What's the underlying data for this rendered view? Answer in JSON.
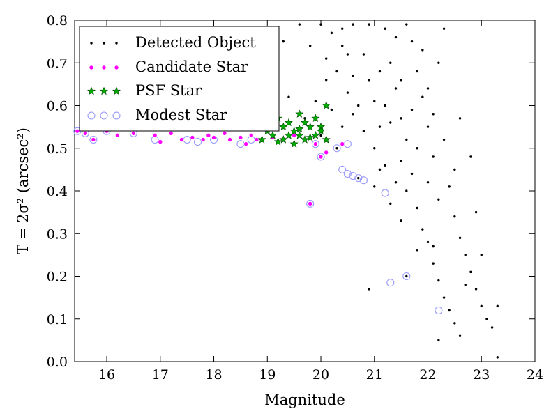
{
  "chart_data": {
    "type": "scatter",
    "xlabel": "Magnitude",
    "ylabel": "T = 2σ² (arcsec²)",
    "xlim": [
      15.4,
      24
    ],
    "ylim": [
      0.0,
      0.8
    ],
    "xticks": [
      16,
      17,
      18,
      19,
      20,
      21,
      22,
      23,
      24
    ],
    "yticks": [
      0.0,
      0.1,
      0.2,
      0.3,
      0.4,
      0.5,
      0.6,
      0.7,
      0.8
    ],
    "xtick_labels": [
      "16",
      "17",
      "18",
      "19",
      "20",
      "21",
      "22",
      "23",
      "24"
    ],
    "ytick_labels": [
      "0.0",
      "0.1",
      "0.2",
      "0.3",
      "0.4",
      "0.5",
      "0.6",
      "0.7",
      "0.8"
    ],
    "grid": false,
    "legend_position": "top-left",
    "colors": {
      "detected": "#000000",
      "candidate": "#ff00ff",
      "psf": "#00aa00",
      "modest": "#9999ff"
    },
    "series": [
      {
        "name": "Detected Object",
        "marker": "dot",
        "points": [
          [
            20.0,
            0.79
          ],
          [
            20.2,
            0.77
          ],
          [
            20.4,
            0.74
          ],
          [
            20.3,
            0.68
          ],
          [
            20.5,
            0.63
          ],
          [
            20.6,
            0.58
          ],
          [
            20.8,
            0.72
          ],
          [
            20.9,
            0.66
          ],
          [
            21.0,
            0.61
          ],
          [
            21.1,
            0.55
          ],
          [
            21.2,
            0.78
          ],
          [
            21.3,
            0.7
          ],
          [
            21.4,
            0.64
          ],
          [
            21.5,
            0.57
          ],
          [
            21.6,
            0.52
          ],
          [
            21.7,
            0.75
          ],
          [
            21.8,
            0.68
          ],
          [
            21.9,
            0.62
          ],
          [
            22.0,
            0.55
          ],
          [
            22.1,
            0.48
          ],
          [
            21.2,
            0.46
          ],
          [
            21.4,
            0.42
          ],
          [
            21.6,
            0.4
          ],
          [
            21.8,
            0.36
          ],
          [
            21.9,
            0.31
          ],
          [
            22.0,
            0.28
          ],
          [
            22.1,
            0.23
          ],
          [
            22.2,
            0.19
          ],
          [
            22.3,
            0.15
          ],
          [
            22.4,
            0.12
          ],
          [
            22.5,
            0.34
          ],
          [
            22.6,
            0.29
          ],
          [
            22.7,
            0.25
          ],
          [
            22.8,
            0.21
          ],
          [
            22.9,
            0.17
          ],
          [
            23.0,
            0.13
          ],
          [
            23.1,
            0.1
          ],
          [
            23.2,
            0.08
          ],
          [
            23.3,
            0.01
          ],
          [
            22.6,
            0.06
          ],
          [
            22.2,
            0.05
          ],
          [
            22.4,
            0.41
          ],
          [
            22.5,
            0.45
          ],
          [
            22.3,
            0.52
          ],
          [
            22.1,
            0.58
          ],
          [
            22.0,
            0.64
          ],
          [
            22.2,
            0.7
          ],
          [
            22.3,
            0.78
          ],
          [
            21.6,
            0.79
          ],
          [
            21.9,
            0.73
          ],
          [
            20.6,
            0.79
          ],
          [
            20.8,
            0.54
          ],
          [
            21.0,
            0.5
          ],
          [
            21.2,
            0.6
          ],
          [
            21.5,
            0.47
          ],
          [
            21.7,
            0.44
          ],
          [
            21.8,
            0.5
          ],
          [
            21.3,
            0.56
          ],
          [
            20.7,
            0.6
          ],
          [
            20.4,
            0.55
          ],
          [
            20.2,
            0.59
          ],
          [
            20.3,
            0.5
          ],
          [
            20.5,
            0.72
          ],
          [
            20.9,
            0.79
          ],
          [
            21.1,
            0.68
          ],
          [
            21.4,
            0.76
          ],
          [
            21.7,
            0.59
          ],
          [
            22.0,
            0.42
          ],
          [
            22.2,
            0.38
          ],
          [
            22.6,
            0.57
          ],
          [
            22.8,
            0.48
          ],
          [
            23.0,
            0.25
          ],
          [
            23.3,
            0.13
          ],
          [
            22.9,
            0.35
          ],
          [
            22.7,
            0.18
          ],
          [
            22.5,
            0.09
          ],
          [
            21.6,
            0.2
          ],
          [
            21.8,
            0.26
          ],
          [
            21.5,
            0.33
          ],
          [
            21.3,
            0.37
          ],
          [
            20.9,
            0.17
          ],
          [
            21.0,
            0.41
          ],
          [
            21.1,
            0.45
          ],
          [
            20.7,
            0.43
          ],
          [
            20.1,
            0.66
          ],
          [
            19.8,
            0.74
          ],
          [
            19.6,
            0.79
          ],
          [
            18.9,
            0.78
          ],
          [
            19.0,
            0.7
          ],
          [
            19.3,
            0.75
          ],
          [
            19.2,
            0.65
          ],
          [
            19.4,
            0.62
          ],
          [
            19.7,
            0.57
          ],
          [
            20.0,
            0.53
          ],
          [
            19.9,
            0.61
          ],
          [
            20.1,
            0.71
          ],
          [
            20.4,
            0.78
          ],
          [
            20.6,
            0.67
          ],
          [
            21.5,
            0.66
          ],
          [
            22.1,
            0.27
          ]
        ]
      },
      {
        "name": "Candidate Star",
        "marker": "circle",
        "points": [
          [
            15.45,
            0.54
          ],
          [
            15.6,
            0.535
          ],
          [
            15.75,
            0.52
          ],
          [
            16.0,
            0.54
          ],
          [
            16.2,
            0.53
          ],
          [
            16.5,
            0.535
          ],
          [
            16.9,
            0.53
          ],
          [
            17.0,
            0.515
          ],
          [
            17.2,
            0.535
          ],
          [
            17.4,
            0.52
          ],
          [
            17.6,
            0.525
          ],
          [
            17.8,
            0.52
          ],
          [
            17.9,
            0.53
          ],
          [
            18.0,
            0.525
          ],
          [
            18.2,
            0.535
          ],
          [
            18.3,
            0.52
          ],
          [
            18.5,
            0.525
          ],
          [
            18.6,
            0.51
          ],
          [
            18.7,
            0.53
          ],
          [
            18.8,
            0.52
          ],
          [
            19.1,
            0.525
          ],
          [
            19.5,
            0.53
          ],
          [
            19.9,
            0.51
          ],
          [
            20.0,
            0.48
          ],
          [
            20.1,
            0.49
          ],
          [
            19.8,
            0.37
          ],
          [
            20.4,
            0.51
          ]
        ]
      },
      {
        "name": "PSF Star",
        "marker": "star",
        "points": [
          [
            18.9,
            0.52
          ],
          [
            19.0,
            0.54
          ],
          [
            19.0,
            0.56
          ],
          [
            19.1,
            0.53
          ],
          [
            19.2,
            0.57
          ],
          [
            19.3,
            0.55
          ],
          [
            19.3,
            0.52
          ],
          [
            19.4,
            0.56
          ],
          [
            19.5,
            0.54
          ],
          [
            19.5,
            0.51
          ],
          [
            19.6,
            0.58
          ],
          [
            19.6,
            0.53
          ],
          [
            19.7,
            0.56
          ],
          [
            19.7,
            0.52
          ],
          [
            19.8,
            0.55
          ],
          [
            19.9,
            0.57
          ],
          [
            19.9,
            0.53
          ],
          [
            20.0,
            0.55
          ],
          [
            20.1,
            0.6
          ],
          [
            20.1,
            0.52
          ],
          [
            19.2,
            0.515
          ],
          [
            19.4,
            0.53
          ],
          [
            19.6,
            0.545
          ],
          [
            19.8,
            0.525
          ],
          [
            20.0,
            0.54
          ]
        ]
      },
      {
        "name": "Modest Star",
        "marker": "ring",
        "points": [
          [
            15.45,
            0.54
          ],
          [
            15.6,
            0.535
          ],
          [
            15.75,
            0.52
          ],
          [
            16.0,
            0.54
          ],
          [
            16.5,
            0.535
          ],
          [
            16.9,
            0.52
          ],
          [
            17.5,
            0.52
          ],
          [
            17.7,
            0.515
          ],
          [
            18.0,
            0.52
          ],
          [
            18.5,
            0.51
          ],
          [
            18.7,
            0.52
          ],
          [
            19.9,
            0.51
          ],
          [
            20.0,
            0.48
          ],
          [
            20.4,
            0.45
          ],
          [
            20.5,
            0.44
          ],
          [
            20.6,
            0.435
          ],
          [
            20.7,
            0.43
          ],
          [
            20.8,
            0.425
          ],
          [
            21.2,
            0.395
          ],
          [
            19.8,
            0.37
          ],
          [
            21.3,
            0.185
          ],
          [
            21.6,
            0.2
          ],
          [
            22.2,
            0.12
          ],
          [
            20.5,
            0.51
          ],
          [
            20.3,
            0.5
          ]
        ]
      }
    ]
  }
}
